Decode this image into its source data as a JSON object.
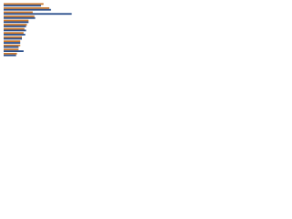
{
  "chart_data": {
    "type": "hbar",
    "categories": [
      null,
      null,
      null,
      null,
      null,
      null,
      null,
      null,
      null,
      null,
      null,
      null,
      null
    ],
    "series": [
      {
        "color": "#c9772c",
        "values": [
          48,
          55,
          35,
          37,
          30,
          28,
          25,
          24,
          22,
          20,
          20,
          18,
          16
        ]
      },
      {
        "color": "#2b4f8c",
        "values": [
          45,
          57,
          82,
          38,
          30,
          27,
          27,
          26,
          22,
          20,
          18,
          24,
          15
        ]
      }
    ],
    "xlim": [
      0,
      100
    ]
  }
}
